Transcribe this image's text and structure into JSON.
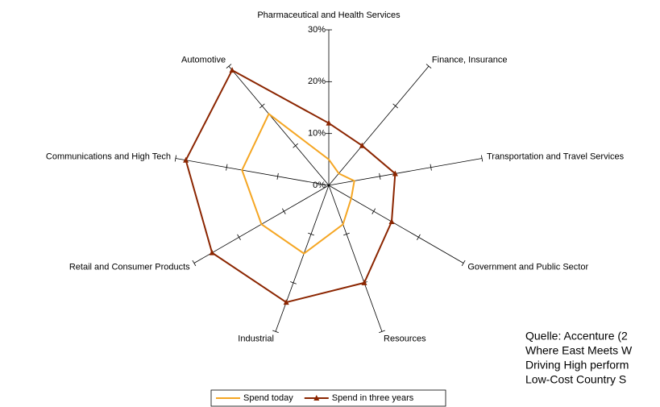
{
  "chart_data": {
    "type": "radar",
    "categories": [
      "Pharmaceutical and Health Services",
      "Finance, Insurance",
      "Transportation and Travel Services",
      "Government and Public Sector",
      "Resources",
      "Industrial",
      "Retail and Consumer Products",
      "Communications and High Tech",
      "Automotive"
    ],
    "series": [
      {
        "name": "Spend today",
        "color": "#f5a623",
        "values": [
          5,
          3,
          5,
          5,
          8,
          14,
          15,
          17,
          18
        ]
      },
      {
        "name": "Spend in three years",
        "color": "#8b2500",
        "values": [
          12,
          10,
          13,
          14,
          20,
          24,
          26,
          28,
          29
        ]
      }
    ],
    "ylim": [
      0,
      30
    ],
    "yticks": [
      {
        "value": 0,
        "label": "0%"
      },
      {
        "value": 10,
        "label": "10%"
      },
      {
        "value": 20,
        "label": "20%"
      },
      {
        "value": 30,
        "label": "30%"
      }
    ],
    "legend": "bottom",
    "source": [
      "Quelle: Accenture (2",
      "Where East Meets W",
      "Driving High perform",
      "Low-Cost Country S"
    ]
  }
}
